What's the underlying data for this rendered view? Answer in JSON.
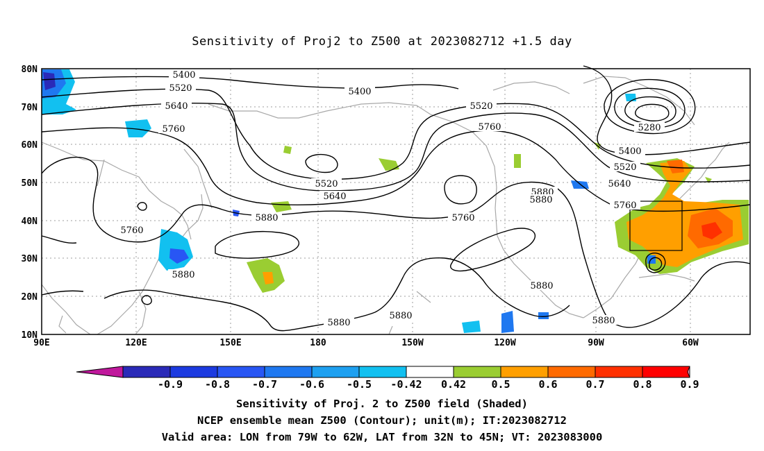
{
  "title": "Sensitivity of Proj2 to Z500 at 2023082712 +1.5 day",
  "axes": {
    "lat_labels": [
      "80N",
      "70N",
      "60N",
      "50N",
      "40N",
      "30N",
      "20N",
      "10N"
    ],
    "lon_labels": [
      "90E",
      "120E",
      "150E",
      "180",
      "150W",
      "120W",
      "90W",
      "60W"
    ]
  },
  "contour_labels": [
    {
      "text": "5400"
    },
    {
      "text": "5520"
    },
    {
      "text": "5640"
    },
    {
      "text": "5760"
    },
    {
      "text": "5400"
    },
    {
      "text": "5520"
    },
    {
      "text": "5760"
    },
    {
      "text": "5280"
    },
    {
      "text": "5400"
    },
    {
      "text": "5520"
    },
    {
      "text": "5640"
    },
    {
      "text": "5760"
    },
    {
      "text": "5520"
    },
    {
      "text": "5640"
    },
    {
      "text": "5760"
    },
    {
      "text": "5760"
    },
    {
      "text": "5880"
    },
    {
      "text": "5880"
    },
    {
      "text": "5880"
    },
    {
      "text": "5880"
    },
    {
      "text": "5880"
    },
    {
      "text": "5880"
    },
    {
      "text": "5880"
    },
    {
      "text": "5880"
    }
  ],
  "colorbar": {
    "tick_labels": [
      "-0.9",
      "-0.8",
      "-0.7",
      "-0.6",
      "-0.5",
      "-0.42",
      "0.42",
      "0.5",
      "0.6",
      "0.7",
      "0.8",
      "0.9"
    ],
    "colors": [
      "#2a2ab8",
      "#1c3ae0",
      "#2856f4",
      "#1f78f0",
      "#1ea0f0",
      "#12c0f0",
      "#ffffff",
      "#9acd32",
      "#ff9f00",
      "#ff6a00",
      "#ff3000",
      "#ff0000"
    ],
    "end_low_color": "#c0189c",
    "end_high_color": "#f7a3c8"
  },
  "captions": [
    "Sensitivity of Proj. 2 to Z500 field (Shaded)",
    "NCEP ensemble mean Z500 (Contour); unit(m); IT:2023082712",
    "Valid area: LON from 79W to 62W, LAT from 32N to 45N; VT: 2023083000"
  ]
}
